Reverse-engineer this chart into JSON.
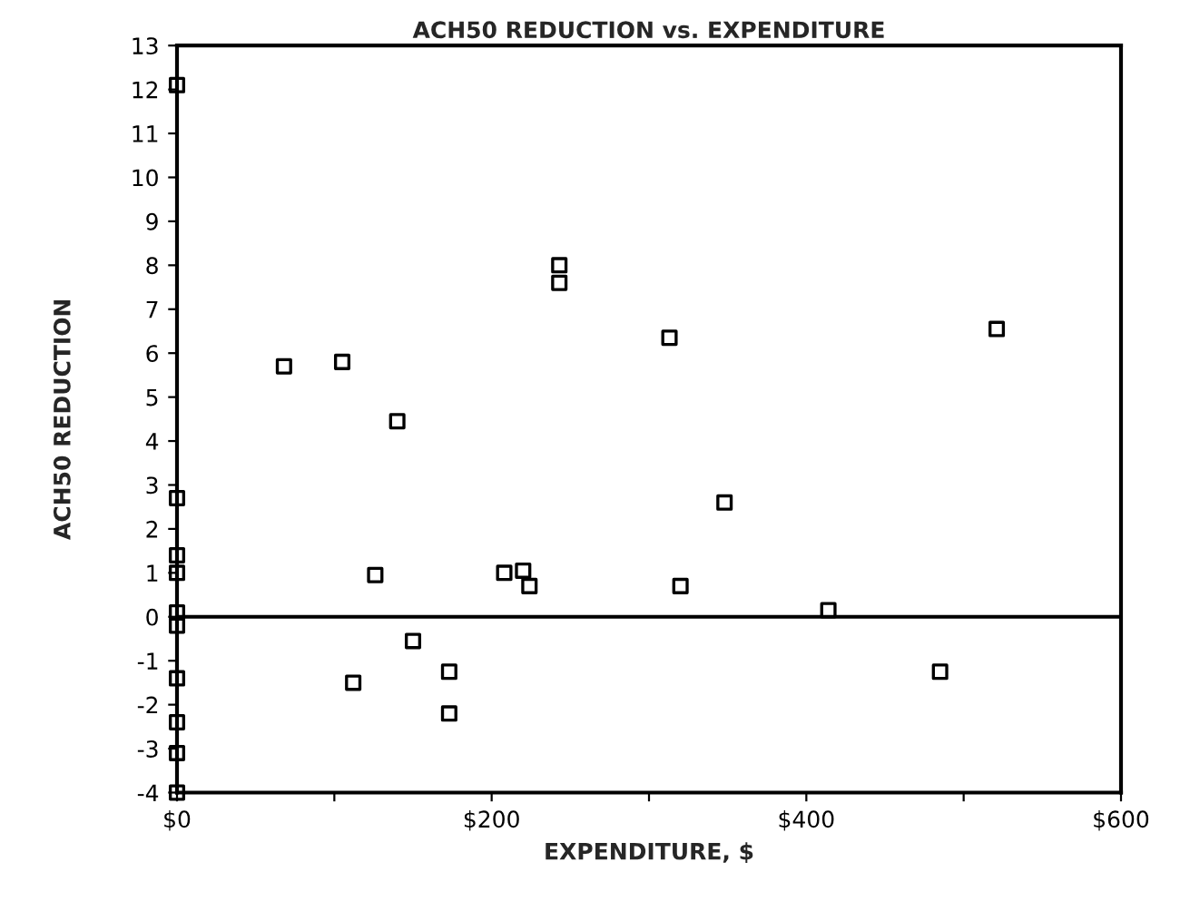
{
  "chart_data": {
    "type": "scatter",
    "title": "ACH50 REDUCTION vs. EXPENDITURE",
    "xlabel": "EXPENDITURE, $",
    "ylabel": "ACH50 REDUCTION",
    "series": [
      {
        "color": "#000000",
        "x": [
          0,
          0,
          0,
          0,
          0,
          0,
          0,
          0,
          0,
          0,
          68,
          105,
          112,
          126,
          140,
          150,
          173,
          173,
          208,
          220,
          224,
          243,
          243,
          313,
          320,
          348,
          414,
          485,
          521
        ],
        "values": [
          12.1,
          2.7,
          1.4,
          1.0,
          0.1,
          -0.2,
          -1.4,
          -2.4,
          -3.1,
          -4.0,
          5.7,
          5.8,
          -1.5,
          0.95,
          4.45,
          -0.55,
          -1.25,
          -2.2,
          1.0,
          1.05,
          0.7,
          8.0,
          7.6,
          6.35,
          0.7,
          2.6,
          0.15,
          -1.25,
          6.55
        ]
      }
    ],
    "marker": "square",
    "grid": false,
    "legend": false,
    "xlim": [
      0,
      600
    ],
    "xticks": [
      {
        "value": 0,
        "label": "$0"
      },
      {
        "value": 100,
        "label": null
      },
      {
        "value": 200,
        "label": "$200"
      },
      {
        "value": 300,
        "label": null
      },
      {
        "value": 400,
        "label": "$400"
      },
      {
        "value": 500,
        "label": null
      },
      {
        "value": 600,
        "label": "$600"
      }
    ],
    "ylim": [
      -4,
      13
    ],
    "yticks": [
      -4,
      -3,
      -2,
      -1,
      0,
      1,
      2,
      3,
      4,
      5,
      6,
      7,
      8,
      9,
      10,
      11,
      12,
      13
    ],
    "ref_lines": [
      {
        "axis": "y",
        "value": 0,
        "color": "#000000"
      }
    ]
  }
}
